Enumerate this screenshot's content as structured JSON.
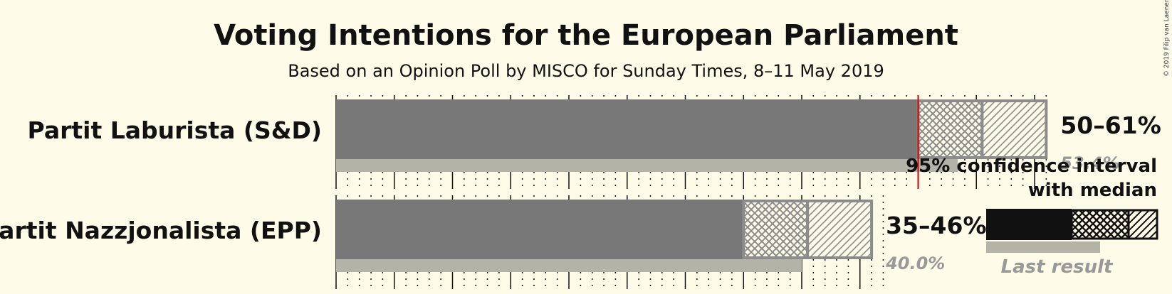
{
  "copyright": "© 2019 Filip van Laenen",
  "chart_data": {
    "type": "bar",
    "title": "Voting Intentions for the European Parliament",
    "subtitle": "Based on an Opinion Poll by MISCO for Sunday Times, 8–11 May 2019",
    "xlim": [
      0,
      61
    ],
    "grid": true,
    "categories": [
      "Partit Laburista (S&D)",
      "Partit Nazzjonalista (EPP)"
    ],
    "series": [
      {
        "name": "95% confidence interval",
        "low": [
          50,
          35
        ],
        "high": [
          61,
          46
        ],
        "median": [
          55.5,
          40.5
        ],
        "range_labels": [
          "50–61%",
          "35–46%"
        ]
      },
      {
        "name": "Last result",
        "values": [
          53.4,
          40.0
        ],
        "value_labels": [
          "53.4%",
          "40.0%"
        ]
      }
    ],
    "legend": {
      "position": "bottom-right",
      "ci_line1": "95% confidence interval",
      "ci_line2": "with median",
      "last_result": "Last result"
    },
    "colors": {
      "background": "#fefce8",
      "bar": "#787878",
      "last_result": "#b3b3a8",
      "last_result_label": "#999999",
      "hatch": "#8c8c8c",
      "legend_bar": "#111111",
      "median_line": "#d00000",
      "text": "#111111"
    }
  }
}
